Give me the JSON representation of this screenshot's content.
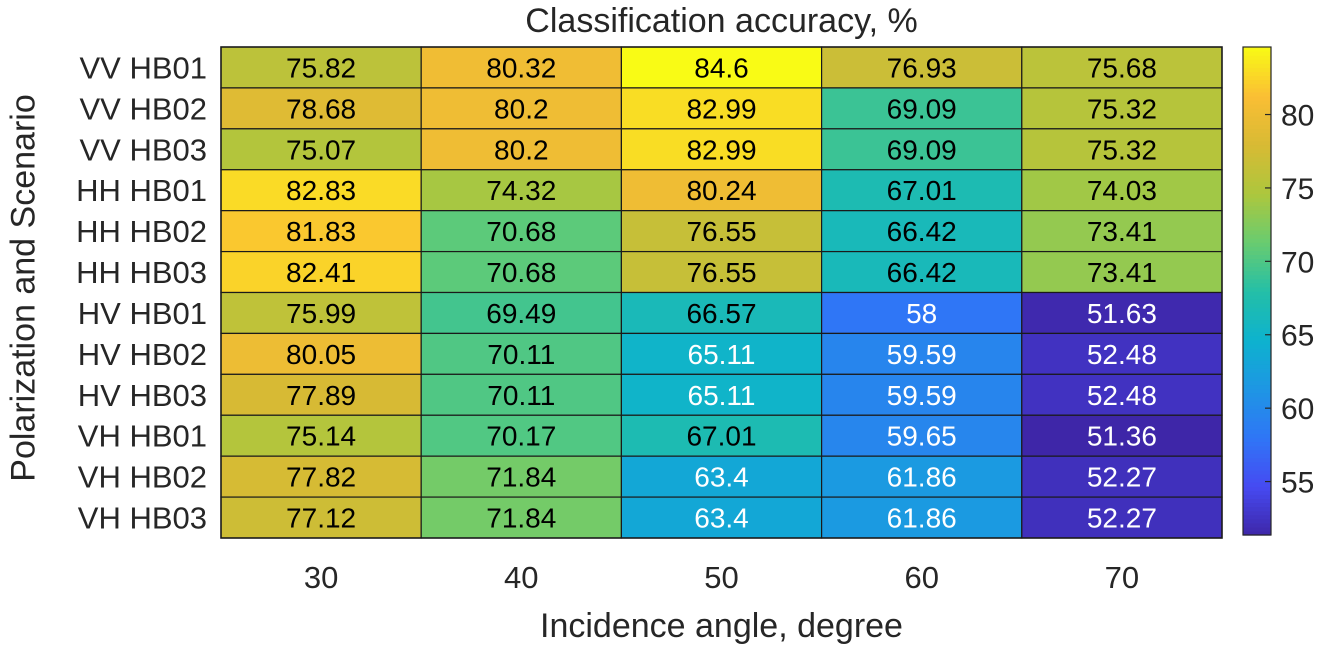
{
  "chart_data": {
    "type": "heatmap",
    "title": "Classification accuracy, %",
    "xlabel": "Incidence angle, degree",
    "ylabel": "Polarization and Scenario",
    "x_categories": [
      "30",
      "40",
      "50",
      "60",
      "70"
    ],
    "y_categories": [
      "VV HB01",
      "VV HB02",
      "VV HB03",
      "HH HB01",
      "HH HB02",
      "HH HB03",
      "HV HB01",
      "HV HB02",
      "HV HB03",
      "VH HB01",
      "VH HB02",
      "VH HB03"
    ],
    "values": [
      [
        75.82,
        80.32,
        84.6,
        76.93,
        75.68
      ],
      [
        78.68,
        80.2,
        82.99,
        69.09,
        75.32
      ],
      [
        75.07,
        80.2,
        82.99,
        69.09,
        75.32
      ],
      [
        82.83,
        74.32,
        80.24,
        67.01,
        74.03
      ],
      [
        81.83,
        70.68,
        76.55,
        66.42,
        73.41
      ],
      [
        82.41,
        70.68,
        76.55,
        66.42,
        73.41
      ],
      [
        75.99,
        69.49,
        66.57,
        58,
        51.63
      ],
      [
        80.05,
        70.11,
        65.11,
        59.59,
        52.48
      ],
      [
        77.89,
        70.11,
        65.11,
        59.59,
        52.48
      ],
      [
        75.14,
        70.17,
        67.01,
        59.65,
        51.36
      ],
      [
        77.82,
        71.84,
        63.4,
        61.86,
        52.27
      ],
      [
        77.12,
        71.84,
        63.4,
        61.86,
        52.27
      ]
    ],
    "value_labels": [
      [
        "75.82",
        "80.32",
        "84.6",
        "76.93",
        "75.68"
      ],
      [
        "78.68",
        "80.2",
        "82.99",
        "69.09",
        "75.32"
      ],
      [
        "75.07",
        "80.2",
        "82.99",
        "69.09",
        "75.32"
      ],
      [
        "82.83",
        "74.32",
        "80.24",
        "67.01",
        "74.03"
      ],
      [
        "81.83",
        "70.68",
        "76.55",
        "66.42",
        "73.41"
      ],
      [
        "82.41",
        "70.68",
        "76.55",
        "66.42",
        "73.41"
      ],
      [
        "75.99",
        "69.49",
        "66.57",
        "58",
        "51.63"
      ],
      [
        "80.05",
        "70.11",
        "65.11",
        "59.59",
        "52.48"
      ],
      [
        "77.89",
        "70.11",
        "65.11",
        "59.59",
        "52.48"
      ],
      [
        "75.14",
        "70.17",
        "67.01",
        "59.65",
        "51.36"
      ],
      [
        "77.82",
        "71.84",
        "63.4",
        "61.86",
        "52.27"
      ],
      [
        "77.12",
        "71.84",
        "63.4",
        "61.86",
        "52.27"
      ]
    ],
    "colorbar": {
      "colormap": "parula",
      "range": [
        51.36,
        84.6
      ],
      "ticks": [
        55,
        60,
        65,
        70,
        75,
        80
      ],
      "tick_labels": [
        "55",
        "60",
        "65",
        "70",
        "75",
        "80"
      ]
    },
    "colors": {
      "text_dark": "#000000",
      "text_light": "#ffffff",
      "grid": "#1a1a1a"
    }
  }
}
